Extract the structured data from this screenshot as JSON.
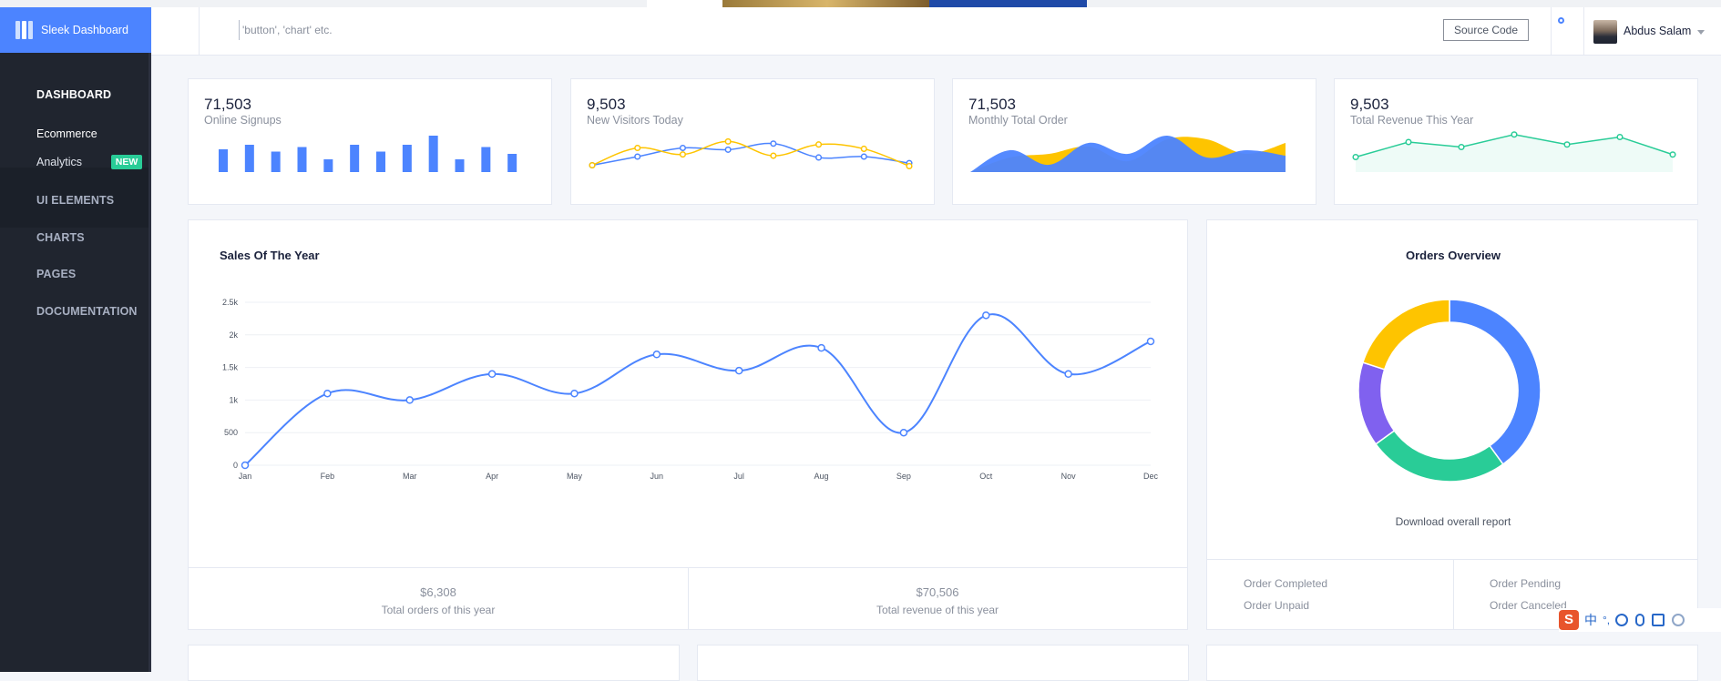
{
  "app": {
    "brand": "Sleek Dashboard"
  },
  "sidebar": {
    "items": [
      {
        "label": "DASHBOARD",
        "active": true
      },
      {
        "label": "UI ELEMENTS"
      },
      {
        "label": "CHARTS"
      },
      {
        "label": "PAGES"
      },
      {
        "label": "DOCUMENTATION"
      }
    ],
    "sub_items": [
      {
        "label": "Ecommerce"
      },
      {
        "label": "Analytics",
        "badge": "NEW"
      }
    ]
  },
  "header": {
    "search_placeholder": "'button', 'chart' etc.",
    "source_button": "Source Code",
    "user_name": "Abdus Salam"
  },
  "stats": [
    {
      "value": "71,503",
      "label": "Online Signups"
    },
    {
      "value": "9,503",
      "label": "New Visitors Today"
    },
    {
      "value": "71,503",
      "label": "Monthly Total Order"
    },
    {
      "value": "9,503",
      "label": "Total Revenue This Year"
    }
  ],
  "sales": {
    "title": "Sales Of The Year",
    "total_orders_value": "$6,308",
    "total_orders_label": "Total orders of this year",
    "total_revenue_value": "$70,506",
    "total_revenue_label": "Total revenue of this year"
  },
  "orders": {
    "title": "Orders Overview",
    "download_label": "Download overall report",
    "legend": [
      "Order Completed",
      "Order Pending",
      "Order Unpaid",
      "Order Canceled"
    ]
  },
  "ime": {
    "char": "中",
    "punct": "°,"
  },
  "chart_data": [
    {
      "type": "bar",
      "values": [
        5,
        6,
        4.5,
        5.5,
        2.8,
        6,
        4.5,
        6,
        8,
        2.8,
        5.5,
        4
      ],
      "color": "#4c84ff"
    },
    {
      "type": "line",
      "series": [
        {
          "values": [
            2,
            4,
            6,
            5.6,
            7,
            3.8,
            4,
            2.5
          ],
          "color": "#4c84ff"
        },
        {
          "values": [
            2,
            6,
            4.5,
            7.5,
            4.2,
            6.8,
            5.8,
            1.8
          ],
          "color": "#fec400"
        }
      ]
    },
    {
      "type": "area",
      "series": [
        {
          "values": [
            0,
            6,
            2,
            8,
            5,
            10,
            4,
            6,
            4.5
          ],
          "color": "#4c84ff"
        },
        {
          "values": [
            0,
            4,
            5,
            7,
            3,
            9,
            9,
            5,
            8
          ],
          "color": "#fec400"
        }
      ]
    },
    {
      "type": "line",
      "values": [
        3,
        6,
        5,
        7.5,
        5.5,
        7,
        3.5
      ],
      "color": "#29cc97"
    },
    {
      "type": "line",
      "title": "Sales Of The Year",
      "categories": [
        "Jan",
        "Feb",
        "Mar",
        "Apr",
        "May",
        "Jun",
        "Jul",
        "Aug",
        "Sep",
        "Oct",
        "Nov",
        "Dec"
      ],
      "values": [
        0,
        1100,
        1000,
        1400,
        1100,
        1700,
        1450,
        1800,
        500,
        2300,
        1400,
        1900
      ],
      "yticks": [
        "0",
        "500",
        "1k",
        "1.5k",
        "2k",
        "2.5k"
      ],
      "ylim": [
        0,
        2500
      ],
      "color": "#4c84ff",
      "grid": true
    },
    {
      "type": "pie",
      "title": "Orders Overview",
      "labels": [
        "Order Completed",
        "Order Pending",
        "Order Unpaid",
        "Order Canceled"
      ],
      "values": [
        40,
        25,
        15,
        20
      ],
      "colors": [
        "#4c84ff",
        "#29cc97",
        "#8061ef",
        "#fec400"
      ]
    }
  ]
}
